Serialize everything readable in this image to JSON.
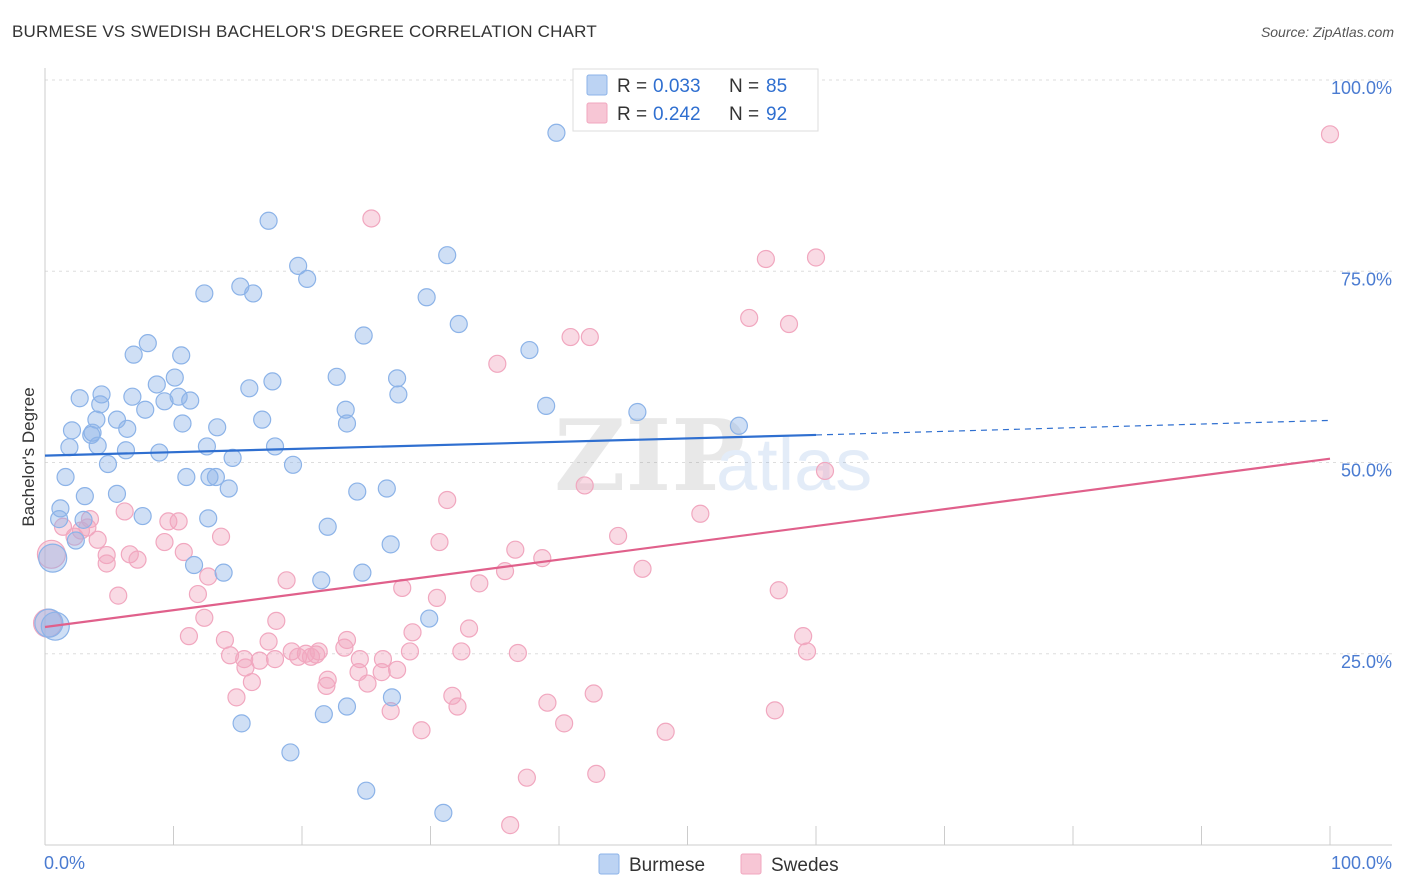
{
  "chart_data": {
    "type": "scatter",
    "title": "BURMESE VS SWEDISH BACHELOR'S DEGREE CORRELATION CHART",
    "source": "Source: ZipAtlas.com",
    "xlabel": "",
    "ylabel": "Bachelor's Degree",
    "xlim": [
      0,
      100
    ],
    "ylim": [
      0,
      100
    ],
    "x_tick_labels": [
      "0.0%",
      "100.0%"
    ],
    "y_tick_labels": [
      {
        "value": 25,
        "label": "25.0%"
      },
      {
        "value": 50,
        "label": "50.0%"
      },
      {
        "value": 75,
        "label": "75.0%"
      },
      {
        "value": 100,
        "label": "100.0%"
      }
    ],
    "watermark": {
      "zip": "ZIP",
      "atlas": "atlas"
    },
    "legend": {
      "r_label": "R = ",
      "n_label": "N = ",
      "entries": [
        {
          "name": "Burmese",
          "r": "0.033",
          "n": "85"
        },
        {
          "name": "Swedes",
          "r": "0.242",
          "n": "92"
        }
      ]
    },
    "series": [
      {
        "name": "Burmese",
        "color": "#8cb3e8",
        "line_color": "#2f6fd0",
        "trend": {
          "x0": 0,
          "y0": 50.9,
          "x1": 60,
          "y1": 53.6,
          "dash_x1": 100,
          "dash_y1": 55.5
        },
        "points": [
          [
            39.8,
            93.1
          ],
          [
            17.4,
            81.6
          ],
          [
            31.3,
            77.1
          ],
          [
            19.7,
            75.7
          ],
          [
            20.4,
            74.0
          ],
          [
            15.2,
            73.0
          ],
          [
            12.4,
            72.1
          ],
          [
            16.2,
            72.1
          ],
          [
            29.7,
            71.6
          ],
          [
            32.2,
            68.1
          ],
          [
            24.8,
            66.6
          ],
          [
            8.0,
            65.6
          ],
          [
            37.7,
            64.7
          ],
          [
            6.9,
            64.1
          ],
          [
            10.6,
            64.0
          ],
          [
            22.7,
            61.2
          ],
          [
            27.4,
            61.0
          ],
          [
            10.1,
            61.1
          ],
          [
            17.7,
            60.6
          ],
          [
            8.7,
            60.2
          ],
          [
            15.9,
            59.7
          ],
          [
            27.5,
            58.9
          ],
          [
            4.4,
            58.9
          ],
          [
            6.8,
            58.6
          ],
          [
            10.4,
            58.6
          ],
          [
            11.3,
            58.1
          ],
          [
            9.3,
            58.0
          ],
          [
            2.7,
            58.4
          ],
          [
            4.3,
            57.6
          ],
          [
            39.0,
            57.4
          ],
          [
            7.8,
            56.9
          ],
          [
            23.4,
            56.9
          ],
          [
            46.1,
            56.6
          ],
          [
            5.6,
            55.6
          ],
          [
            16.9,
            55.6
          ],
          [
            4.0,
            55.6
          ],
          [
            10.7,
            55.1
          ],
          [
            23.5,
            55.1
          ],
          [
            54.0,
            54.8
          ],
          [
            13.4,
            54.6
          ],
          [
            6.4,
            54.4
          ],
          [
            2.1,
            54.2
          ],
          [
            3.7,
            53.9
          ],
          [
            3.6,
            53.6
          ],
          [
            4.1,
            52.2
          ],
          [
            12.6,
            52.1
          ],
          [
            1.9,
            52.0
          ],
          [
            17.9,
            52.1
          ],
          [
            6.3,
            51.6
          ],
          [
            8.9,
            51.3
          ],
          [
            14.6,
            50.6
          ],
          [
            4.9,
            49.8
          ],
          [
            19.3,
            49.7
          ],
          [
            1.6,
            48.1
          ],
          [
            11.0,
            48.1
          ],
          [
            12.8,
            48.1
          ],
          [
            13.3,
            48.1
          ],
          [
            14.3,
            46.6
          ],
          [
            26.6,
            46.6
          ],
          [
            3.1,
            45.6
          ],
          [
            24.3,
            46.2
          ],
          [
            5.6,
            45.9
          ],
          [
            1.2,
            44.0
          ],
          [
            12.7,
            42.7
          ],
          [
            7.6,
            43.0
          ],
          [
            1.1,
            42.6
          ],
          [
            22.0,
            41.6
          ],
          [
            26.9,
            39.3
          ],
          [
            11.6,
            36.6
          ],
          [
            13.9,
            35.6
          ],
          [
            24.7,
            35.6
          ],
          [
            21.5,
            34.6
          ],
          [
            29.9,
            29.6
          ],
          [
            0.3,
            29.0
          ],
          [
            0.8,
            28.6
          ],
          [
            27.0,
            19.3
          ],
          [
            23.5,
            18.1
          ],
          [
            21.7,
            17.1
          ],
          [
            15.3,
            15.9
          ],
          [
            19.1,
            12.1
          ],
          [
            25.0,
            7.1
          ],
          [
            31.0,
            4.2
          ],
          [
            0.6,
            37.5
          ],
          [
            2.4,
            39.8
          ],
          [
            3.0,
            42.5
          ]
        ]
      },
      {
        "name": "Swedes",
        "color": "#f1a7bf",
        "line_color": "#e0608b",
        "trend": {
          "x0": 0,
          "y0": 28.5,
          "x1": 100,
          "y1": 50.5
        },
        "points": [
          [
            100,
            92.9
          ],
          [
            25.4,
            81.9
          ],
          [
            56.1,
            76.6
          ],
          [
            60.0,
            76.8
          ],
          [
            57.9,
            68.1
          ],
          [
            54.8,
            68.9
          ],
          [
            40.9,
            66.4
          ],
          [
            42.4,
            66.4
          ],
          [
            35.2,
            62.9
          ],
          [
            60.7,
            48.9
          ],
          [
            42.0,
            47.0
          ],
          [
            31.3,
            45.1
          ],
          [
            51.0,
            43.3
          ],
          [
            3.5,
            42.6
          ],
          [
            6.2,
            43.6
          ],
          [
            9.6,
            42.3
          ],
          [
            10.4,
            42.3
          ],
          [
            3.3,
            41.5
          ],
          [
            2.8,
            41.1
          ],
          [
            13.7,
            40.3
          ],
          [
            4.1,
            39.9
          ],
          [
            9.3,
            39.6
          ],
          [
            30.7,
            39.6
          ],
          [
            44.6,
            40.4
          ],
          [
            36.6,
            38.6
          ],
          [
            10.8,
            38.3
          ],
          [
            6.6,
            38.0
          ],
          [
            4.8,
            37.9
          ],
          [
            7.2,
            37.3
          ],
          [
            4.8,
            36.8
          ],
          [
            35.8,
            35.8
          ],
          [
            12.7,
            35.1
          ],
          [
            18.8,
            34.6
          ],
          [
            27.8,
            33.6
          ],
          [
            57.1,
            33.3
          ],
          [
            5.7,
            32.6
          ],
          [
            11.9,
            32.8
          ],
          [
            30.5,
            32.3
          ],
          [
            12.4,
            29.7
          ],
          [
            18.0,
            29.3
          ],
          [
            33.0,
            28.3
          ],
          [
            28.6,
            27.8
          ],
          [
            11.2,
            27.3
          ],
          [
            14.0,
            26.8
          ],
          [
            17.4,
            26.6
          ],
          [
            23.5,
            26.8
          ],
          [
            59.0,
            27.3
          ],
          [
            23.3,
            25.8
          ],
          [
            19.2,
            25.3
          ],
          [
            20.3,
            25.0
          ],
          [
            21.3,
            25.3
          ],
          [
            28.4,
            25.3
          ],
          [
            32.4,
            25.3
          ],
          [
            36.8,
            25.1
          ],
          [
            59.3,
            25.3
          ],
          [
            14.4,
            24.8
          ],
          [
            15.5,
            24.3
          ],
          [
            16.7,
            24.1
          ],
          [
            17.9,
            24.3
          ],
          [
            19.7,
            24.6
          ],
          [
            20.7,
            24.6
          ],
          [
            21.1,
            24.9
          ],
          [
            24.5,
            24.3
          ],
          [
            26.3,
            24.3
          ],
          [
            15.6,
            23.2
          ],
          [
            24.4,
            22.6
          ],
          [
            27.4,
            22.9
          ],
          [
            26.2,
            22.6
          ],
          [
            22.0,
            21.6
          ],
          [
            21.9,
            20.8
          ],
          [
            16.1,
            21.3
          ],
          [
            25.1,
            21.1
          ],
          [
            42.7,
            19.8
          ],
          [
            31.7,
            19.5
          ],
          [
            14.9,
            19.3
          ],
          [
            39.1,
            18.6
          ],
          [
            32.1,
            18.1
          ],
          [
            56.8,
            17.6
          ],
          [
            26.9,
            17.5
          ],
          [
            40.4,
            15.9
          ],
          [
            29.3,
            15.0
          ],
          [
            48.3,
            14.8
          ],
          [
            42.9,
            9.3
          ],
          [
            37.5,
            8.8
          ],
          [
            36.2,
            2.6
          ],
          [
            0.2,
            29.0
          ],
          [
            0.5,
            38.0
          ],
          [
            1.4,
            41.6
          ],
          [
            2.3,
            40.3
          ],
          [
            46.5,
            36.1
          ],
          [
            38.7,
            37.5
          ],
          [
            33.8,
            34.2
          ]
        ]
      }
    ]
  }
}
